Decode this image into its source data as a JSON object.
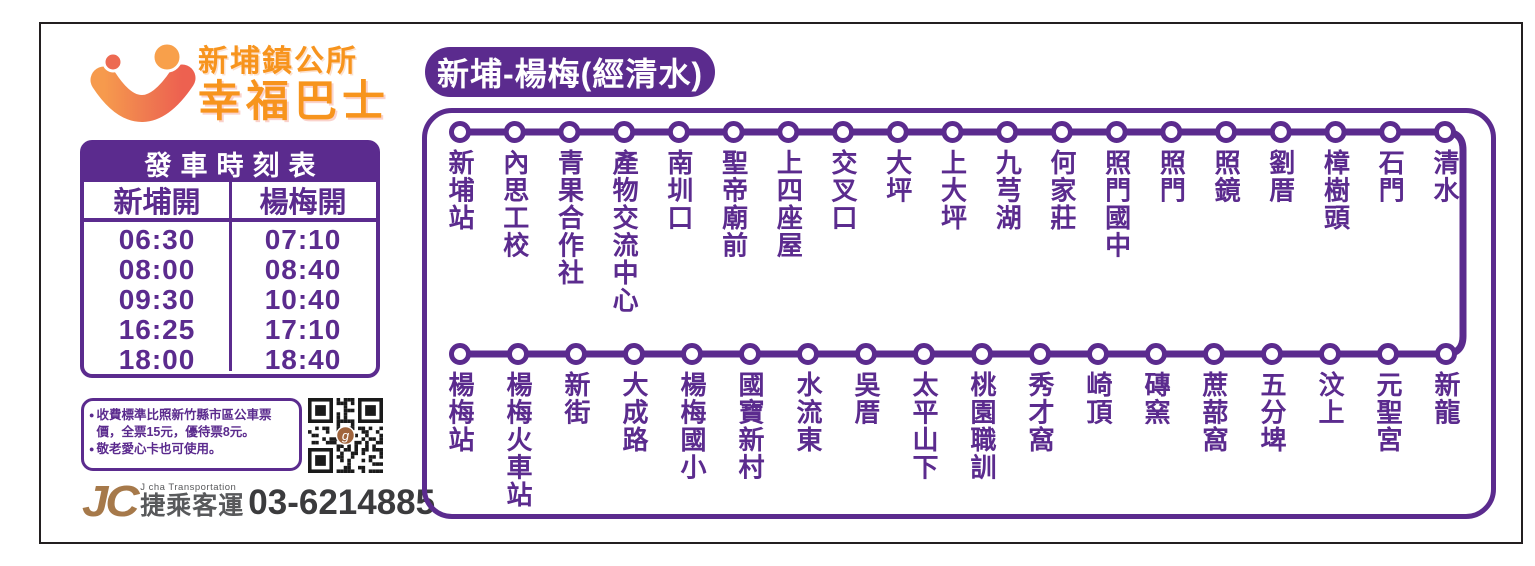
{
  "brand": {
    "org": "新埔鎮公所",
    "name": "幸福巴士"
  },
  "timetable": {
    "title": "發車時刻表",
    "columns": [
      "新埔開",
      "楊梅開"
    ],
    "rows": [
      [
        "06:30",
        "07:10"
      ],
      [
        "08:00",
        "08:40"
      ],
      [
        "09:30",
        "10:40"
      ],
      [
        "16:25",
        "17:10"
      ],
      [
        "18:00",
        "18:40"
      ]
    ]
  },
  "fare_notes": [
    "收費標準比照新竹縣市區公車票價，全票15元，優待票8元。",
    "敬老愛心卡也可使用。"
  ],
  "operator": {
    "abbr": "JC",
    "name_en": "J cha Transportation",
    "name_zh": "捷乘客運",
    "phone": "03-6214885"
  },
  "route": {
    "title": "新埔-楊梅(經清水)",
    "top_stops": [
      "新埔站",
      "內思工校",
      "青果合作社",
      "產物交流中心",
      "南圳口",
      "聖帝廟前",
      "上四座屋",
      "交叉口",
      "大坪",
      "上大坪",
      "九芎湖",
      "何家莊",
      "照門國中",
      "照門",
      "照鏡",
      "劉厝",
      "樟樹頭",
      "石門",
      "清水"
    ],
    "bottom_stops": [
      "楊梅站",
      "楊梅火車站",
      "新街",
      "大成路",
      "楊梅國小",
      "國寶新村",
      "水流東",
      "吳厝",
      "太平山下",
      "桃園職訓",
      "秀才窩",
      "崎頂",
      "磚窯",
      "蔗蔀窩",
      "五分埤",
      "汶上",
      "元聖宮",
      "新龍"
    ]
  },
  "icons": {
    "logo": "smiley-face-logo",
    "qr": "qr-code",
    "bullet": "dot-bullet"
  },
  "colors": {
    "purple": "#5B2B8E",
    "orange": "#F7941D",
    "coral": "#ED6A52",
    "orange_light": "#F8A04B",
    "bronze": "#A6794A",
    "gray": "#58595B",
    "dark": "#3B3B3D",
    "qr_logo_brown": "#A0643C"
  }
}
